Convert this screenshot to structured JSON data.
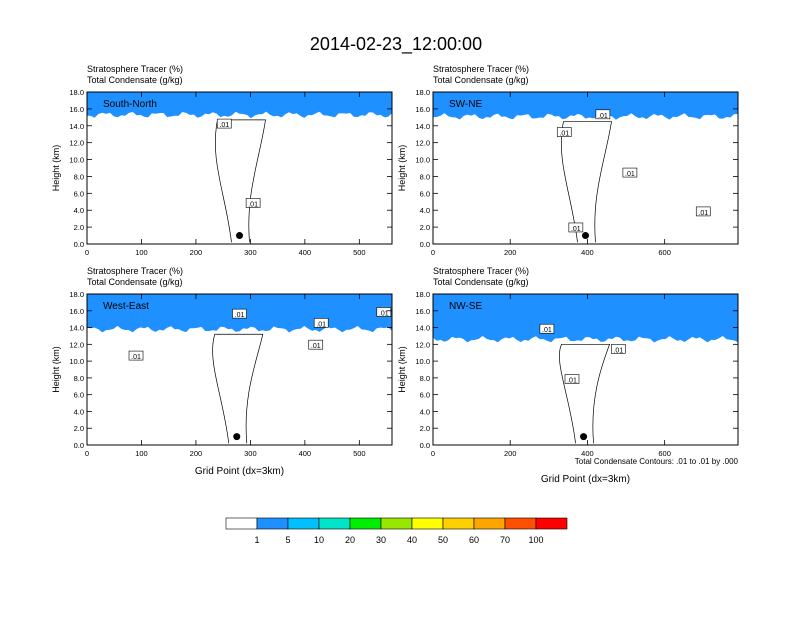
{
  "title": "2014-02-23_12:00:00",
  "colorbar": {
    "labels": [
      "1",
      "5",
      "10",
      "20",
      "30",
      "40",
      "50",
      "60",
      "70",
      "100"
    ],
    "colors": [
      "#ffffff",
      "#1e90ff",
      "#00bfff",
      "#00e5c8",
      "#00ee00",
      "#99e600",
      "#ffff00",
      "#ffd000",
      "#ffa500",
      "#ff5000",
      "#ff0000"
    ]
  },
  "panel_captions": {
    "line1": "Stratosphere Tracer   (%)",
    "line2": "Total Condensate   (g/kg)"
  },
  "footnote": "Total Condensate Contours: .01 to .01 by .000",
  "chart_data": [
    {
      "type": "heatmap",
      "panel_label": "South-North",
      "ylabel": "Height (km)",
      "xlabel": "",
      "xlim": [
        0,
        560
      ],
      "ylim": [
        0,
        18
      ],
      "x_ticks": [
        "0",
        "100",
        "200",
        "300",
        "400",
        "500"
      ],
      "y_ticks": [
        "0.0",
        "2.0",
        "4.0",
        "6.0",
        "8.0",
        "10.0",
        "12.0",
        "14.0",
        "16.0",
        "18.0"
      ],
      "tracer_base_km": 15.3,
      "contour_labels": [
        {
          "text": ".01",
          "x": 252,
          "y": 14.2
        },
        {
          "text": ".01",
          "x": 305,
          "y": 4.8
        }
      ],
      "marker": {
        "x": 280,
        "y": 1.0
      }
    },
    {
      "type": "heatmap",
      "panel_label": "SW-NE",
      "ylabel": "Height (km)",
      "xlabel": "",
      "xlim": [
        0,
        790
      ],
      "ylim": [
        0,
        18
      ],
      "x_ticks": [
        "0",
        "200",
        "400",
        "600"
      ],
      "y_ticks": [
        "0.0",
        "2.0",
        "4.0",
        "6.0",
        "8.0",
        "10.0",
        "12.0",
        "14.0",
        "16.0",
        "18.0"
      ],
      "tracer_base_km": 15.1,
      "contour_labels": [
        {
          "text": ".01",
          "x": 440,
          "y": 15.3
        },
        {
          "text": ".01",
          "x": 340,
          "y": 13.2
        },
        {
          "text": ".01",
          "x": 510,
          "y": 8.4
        },
        {
          "text": ".01",
          "x": 700,
          "y": 3.8
        },
        {
          "text": ".01",
          "x": 370,
          "y": 1.9
        }
      ],
      "marker": {
        "x": 395,
        "y": 1.0
      }
    },
    {
      "type": "heatmap",
      "panel_label": "West-East",
      "ylabel": "Height (km)",
      "xlabel": "Grid Point (dx=3km)",
      "xlim": [
        0,
        560
      ],
      "ylim": [
        0,
        18
      ],
      "x_ticks": [
        "0",
        "100",
        "200",
        "300",
        "400",
        "500"
      ],
      "y_ticks": [
        "0.0",
        "2.0",
        "4.0",
        "6.0",
        "8.0",
        "10.0",
        "12.0",
        "14.0",
        "16.0",
        "18.0"
      ],
      "tracer_base_km": 13.8,
      "contour_labels": [
        {
          "text": ".01",
          "x": 90,
          "y": 10.6
        },
        {
          "text": ".01",
          "x": 280,
          "y": 15.6
        },
        {
          "text": ".01",
          "x": 430,
          "y": 14.5
        },
        {
          "text": ".01",
          "x": 420,
          "y": 11.9
        },
        {
          "text": ".01",
          "x": 545,
          "y": 15.8
        }
      ],
      "marker": {
        "x": 275,
        "y": 1.0
      }
    },
    {
      "type": "heatmap",
      "panel_label": "NW-SE",
      "ylabel": "Height (km)",
      "xlabel": "Grid Point (dx=3km)",
      "xlim": [
        0,
        790
      ],
      "ylim": [
        0,
        18
      ],
      "x_ticks": [
        "0",
        "200",
        "400",
        "600"
      ],
      "y_ticks": [
        "0.0",
        "2.0",
        "4.0",
        "6.0",
        "8.0",
        "10.0",
        "12.0",
        "14.0",
        "16.0",
        "18.0"
      ],
      "tracer_base_km": 12.6,
      "contour_labels": [
        {
          "text": ".01",
          "x": 295,
          "y": 13.8
        },
        {
          "text": ".01",
          "x": 480,
          "y": 11.4
        },
        {
          "text": ".01",
          "x": 360,
          "y": 7.8
        }
      ],
      "marker": {
        "x": 390,
        "y": 1.0
      }
    }
  ]
}
